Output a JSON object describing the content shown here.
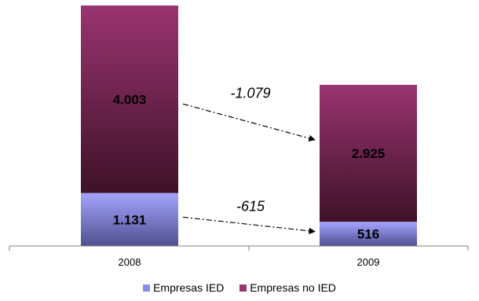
{
  "chart_data": {
    "type": "bar",
    "stacked": true,
    "categories": [
      "2008",
      "2009"
    ],
    "series": [
      {
        "name": "Empresas IED",
        "values": [
          1131,
          516
        ],
        "labels": [
          "1.131",
          "516"
        ],
        "color": "#8c8cf0"
      },
      {
        "name": "Empresas no IED",
        "values": [
          4003,
          2925
        ],
        "labels": [
          "4.003",
          "2.925"
        ],
        "color": "#9a3470"
      }
    ],
    "annotations": [
      {
        "text": "-1.079",
        "series": "Empresas no IED",
        "from": "2008",
        "to": "2009"
      },
      {
        "text": "-615",
        "series": "Empresas IED",
        "from": "2008",
        "to": "2009"
      }
    ],
    "ylim": [
      0,
      5134
    ],
    "grid": false,
    "legend_position": "bottom"
  }
}
